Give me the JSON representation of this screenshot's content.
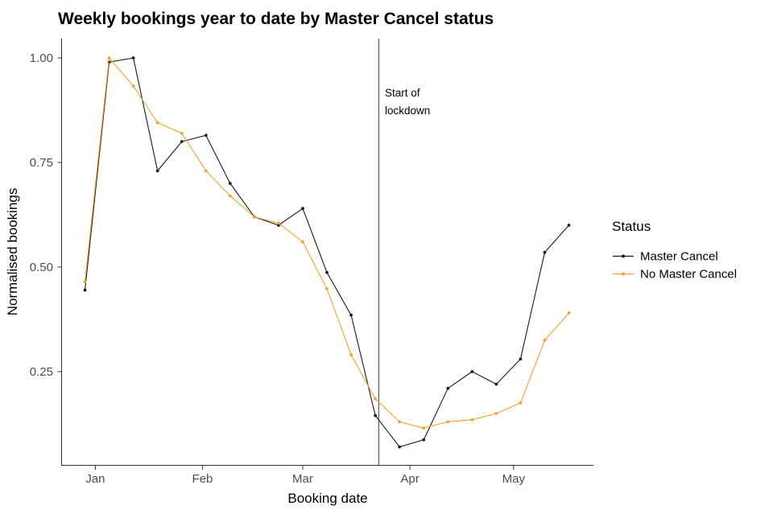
{
  "chart_data": {
    "type": "line",
    "title": "Weekly bookings year to date by Master Cancel status",
    "xlabel": "Booking date",
    "ylabel": "Normalised bookings",
    "grid": false,
    "legend": {
      "title": "Status",
      "position": "right"
    },
    "x_ticks": [
      {
        "label": "Jan",
        "date": "2020-01-01"
      },
      {
        "label": "Feb",
        "date": "2020-02-01"
      },
      {
        "label": "Mar",
        "date": "2020-03-01"
      },
      {
        "label": "Apr",
        "date": "2020-04-01"
      },
      {
        "label": "May",
        "date": "2020-05-01"
      }
    ],
    "y_ticks": [
      {
        "label": "1.00",
        "value": 1.0
      },
      {
        "label": "0.75",
        "value": 0.75
      },
      {
        "label": "0.50",
        "value": 0.5
      },
      {
        "label": "0.25",
        "value": 0.25
      }
    ],
    "ylim_panel": [
      0.027,
      1.046
    ],
    "categories": [
      "2019-12-29",
      "2020-01-05",
      "2020-01-12",
      "2020-01-19",
      "2020-01-26",
      "2020-02-02",
      "2020-02-09",
      "2020-02-16",
      "2020-02-23",
      "2020-03-01",
      "2020-03-08",
      "2020-03-15",
      "2020-03-22",
      "2020-03-29",
      "2020-04-05",
      "2020-04-12",
      "2020-04-19",
      "2020-04-26",
      "2020-05-03",
      "2020-05-10",
      "2020-05-17"
    ],
    "series": [
      {
        "name": "Master Cancel",
        "color": "#1a1a1a",
        "values": [
          0.445,
          0.99,
          1.0,
          0.73,
          0.8,
          0.815,
          0.7,
          0.62,
          0.6,
          0.64,
          0.487,
          0.385,
          0.145,
          0.07,
          0.087,
          0.21,
          0.25,
          0.22,
          0.28,
          0.535,
          0.6
        ]
      },
      {
        "name": "No Master Cancel",
        "color": "#f0a32f",
        "values": [
          0.465,
          1.0,
          0.933,
          0.845,
          0.82,
          0.73,
          0.67,
          0.62,
          0.605,
          0.56,
          0.448,
          0.29,
          0.185,
          0.13,
          0.115,
          0.13,
          0.135,
          0.15,
          0.175,
          0.325,
          0.39
        ]
      }
    ],
    "annotation": {
      "date": "2020-03-23",
      "lines": [
        "Start of",
        "lockdown"
      ]
    }
  }
}
